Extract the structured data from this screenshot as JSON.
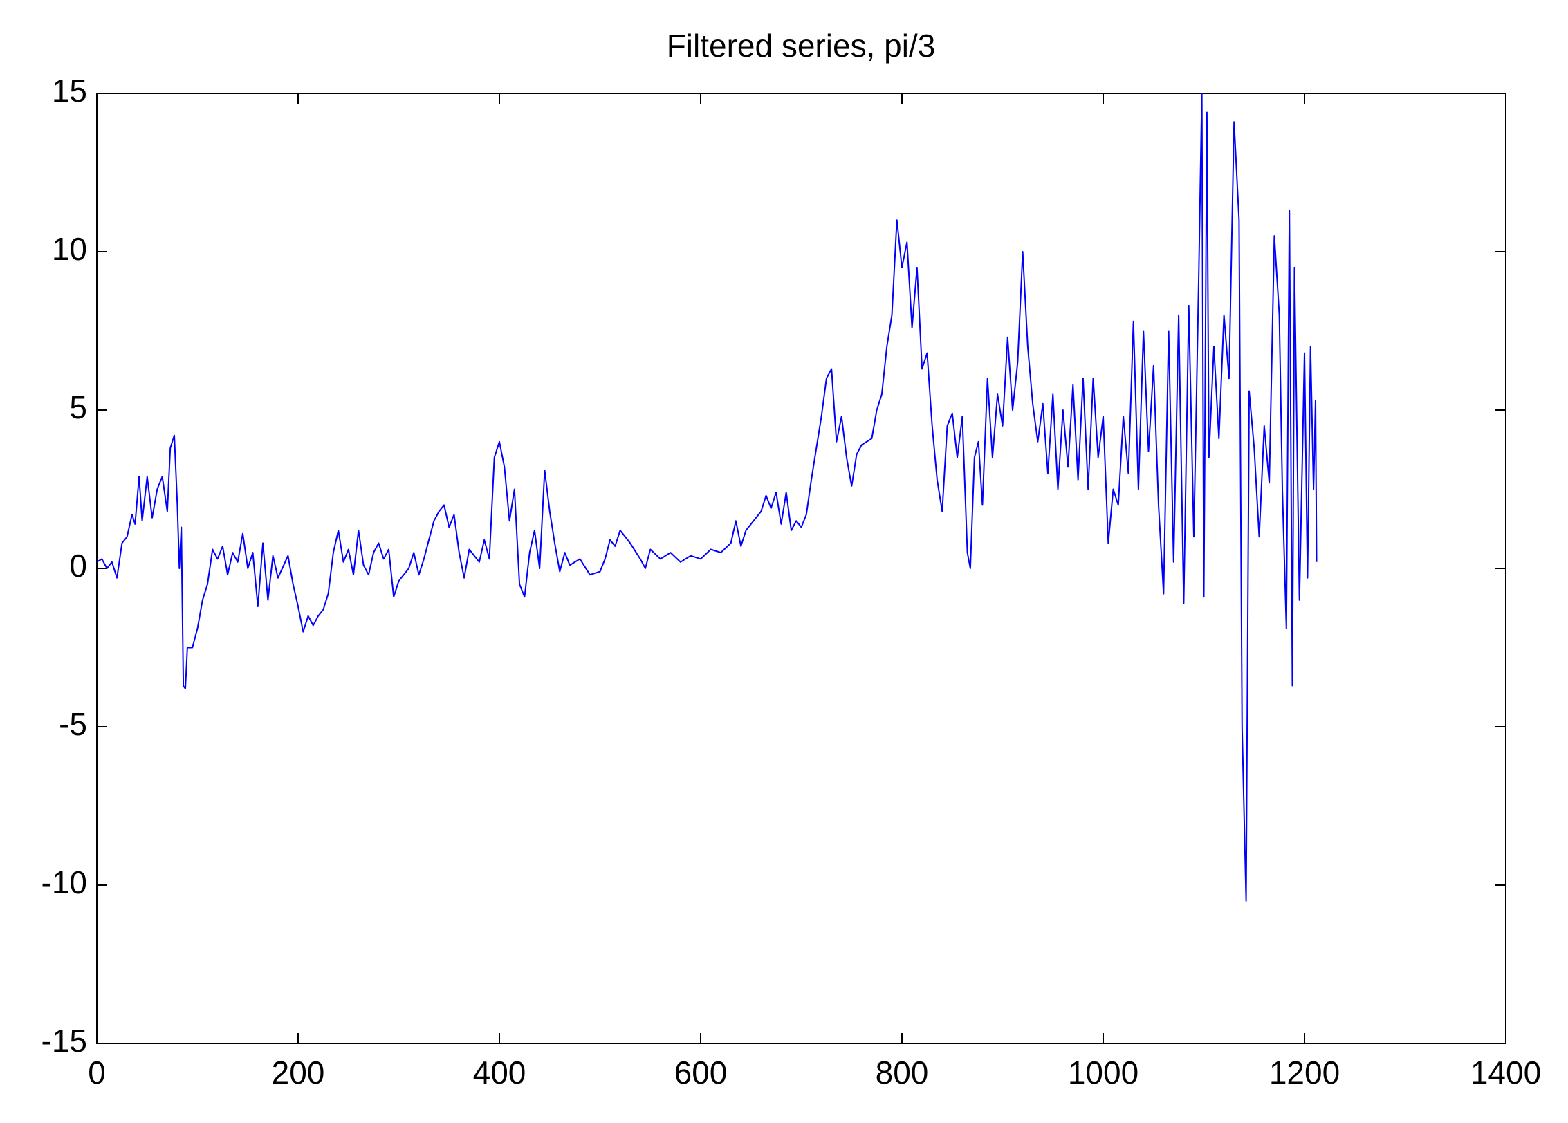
{
  "chart_data": {
    "type": "line",
    "title": "Filtered series, pi/3",
    "x": [
      0,
      5,
      10,
      15,
      20,
      25,
      30,
      35,
      38,
      42,
      45,
      50,
      55,
      60,
      65,
      70,
      73,
      77,
      80,
      82,
      84,
      86,
      88,
      90,
      95,
      100,
      105,
      110,
      115,
      120,
      125,
      130,
      135,
      140,
      145,
      150,
      155,
      160,
      165,
      170,
      175,
      180,
      190,
      195,
      200,
      205,
      210,
      215,
      220,
      225,
      230,
      235,
      240,
      245,
      250,
      255,
      260,
      265,
      270,
      275,
      280,
      285,
      290,
      295,
      300,
      310,
      315,
      320,
      325,
      330,
      335,
      340,
      345,
      350,
      355,
      360,
      365,
      370,
      380,
      385,
      390,
      395,
      400,
      405,
      410,
      415,
      420,
      425,
      430,
      435,
      440,
      445,
      450,
      455,
      460,
      465,
      470,
      480,
      490,
      500,
      505,
      510,
      515,
      520,
      525,
      530,
      540,
      545,
      550,
      560,
      570,
      580,
      590,
      600,
      610,
      620,
      630,
      635,
      640,
      645,
      650,
      660,
      665,
      670,
      675,
      680,
      685,
      690,
      695,
      700,
      705,
      710,
      715,
      720,
      725,
      730,
      735,
      740,
      745,
      750,
      755,
      760,
      770,
      775,
      780,
      785,
      790,
      795,
      800,
      805,
      810,
      815,
      820,
      825,
      830,
      835,
      840,
      845,
      850,
      855,
      860,
      865,
      868,
      872,
      876,
      880,
      885,
      890,
      895,
      900,
      905,
      910,
      915,
      920,
      925,
      930,
      935,
      940,
      945,
      950,
      955,
      960,
      965,
      970,
      975,
      980,
      985,
      990,
      995,
      1000,
      1005,
      1010,
      1015,
      1020,
      1025,
      1030,
      1035,
      1040,
      1045,
      1050,
      1055,
      1060,
      1065,
      1070,
      1075,
      1080,
      1085,
      1090,
      1095,
      1098,
      1100,
      1103,
      1105,
      1110,
      1115,
      1120,
      1125,
      1130,
      1135,
      1138,
      1142,
      1145,
      1150,
      1155,
      1160,
      1165,
      1170,
      1175,
      1178,
      1182,
      1185,
      1188,
      1190,
      1195,
      1200,
      1203,
      1206,
      1209,
      1211,
      1212
    ],
    "values": [
      0.2,
      0.3,
      0,
      0.2,
      -0.3,
      0.8,
      1,
      1.7,
      1.4,
      2.9,
      1.5,
      2.9,
      1.6,
      2.5,
      2.9,
      1.8,
      3.8,
      4.2,
      2,
      0,
      1.3,
      -3.7,
      -3.8,
      -2.5,
      -2.5,
      -1.9,
      -1,
      -0.5,
      0.6,
      0.3,
      0.7,
      -0.2,
      0.5,
      0.2,
      1.1,
      0,
      0.5,
      -1.2,
      0.8,
      -1,
      0.4,
      -0.3,
      0.4,
      -0.5,
      -1.2,
      -2,
      -1.5,
      -1.8,
      -1.5,
      -1.3,
      -0.8,
      0.5,
      1.2,
      0.2,
      0.6,
      -0.2,
      1.2,
      0.1,
      -0.2,
      0.5,
      0.8,
      0.3,
      0.6,
      -0.9,
      -0.4,
      0,
      0.5,
      -0.2,
      0.3,
      0.9,
      1.5,
      1.8,
      2,
      1.3,
      1.7,
      0.5,
      -0.3,
      0.6,
      0.2,
      0.9,
      0.3,
      3.5,
      4,
      3.2,
      1.5,
      2.5,
      -0.5,
      -0.9,
      0.5,
      1.2,
      0,
      3.1,
      1.8,
      0.8,
      -0.1,
      0.5,
      0.1,
      0.3,
      -0.2,
      -0.1,
      0.3,
      0.9,
      0.7,
      1.2,
      1,
      0.8,
      0.3,
      0,
      0.6,
      0.3,
      0.5,
      0.2,
      0.4,
      0.3,
      0.6,
      0.5,
      0.8,
      1.5,
      0.7,
      1.2,
      1.4,
      1.8,
      2.3,
      1.9,
      2.4,
      1.4,
      2.4,
      1.2,
      1.5,
      1.3,
      1.7,
      2.8,
      3.8,
      4.8,
      6,
      6.3,
      4,
      4.8,
      3.5,
      2.6,
      3.6,
      3.9,
      4.1,
      5,
      5.5,
      7,
      8,
      11,
      9.5,
      10.3,
      7.6,
      9.5,
      6.3,
      6.8,
      4.5,
      2.8,
      1.8,
      4.5,
      4.9,
      3.5,
      4.8,
      0.5,
      0,
      3.5,
      4,
      2,
      6,
      3.5,
      5.5,
      4.5,
      7.3,
      5,
      6.5,
      10,
      7,
      5.2,
      4,
      5.2,
      3,
      5.5,
      2.5,
      5,
      3.2,
      5.8,
      2.8,
      6,
      2.5,
      6,
      3.5,
      4.8,
      0.8,
      2.5,
      2,
      4.8,
      3,
      7.8,
      2.5,
      7.5,
      3.7,
      6.4,
      2,
      -0.8,
      7.5,
      0.2,
      8,
      -1.1,
      8.3,
      1,
      9.3,
      15,
      -0.9,
      14.4,
      3.5,
      7,
      4.1,
      8,
      6,
      14.1,
      11,
      -5,
      -10.5,
      5.6,
      3.8,
      1,
      4.5,
      2.7,
      10.5,
      8,
      2.5,
      -1.9,
      11.3,
      -3.7,
      9.5,
      -1,
      6.8,
      -0.3,
      7,
      2.5,
      5.3,
      0.2
    ],
    "color": "#0000ff",
    "xlim": [
      0,
      1400
    ],
    "xticks": [
      0,
      200,
      400,
      600,
      800,
      1000,
      1200,
      1400
    ],
    "ylim": [
      -15,
      15
    ],
    "yticks": [
      -15,
      -10,
      -5,
      0,
      5,
      10,
      15
    ]
  }
}
